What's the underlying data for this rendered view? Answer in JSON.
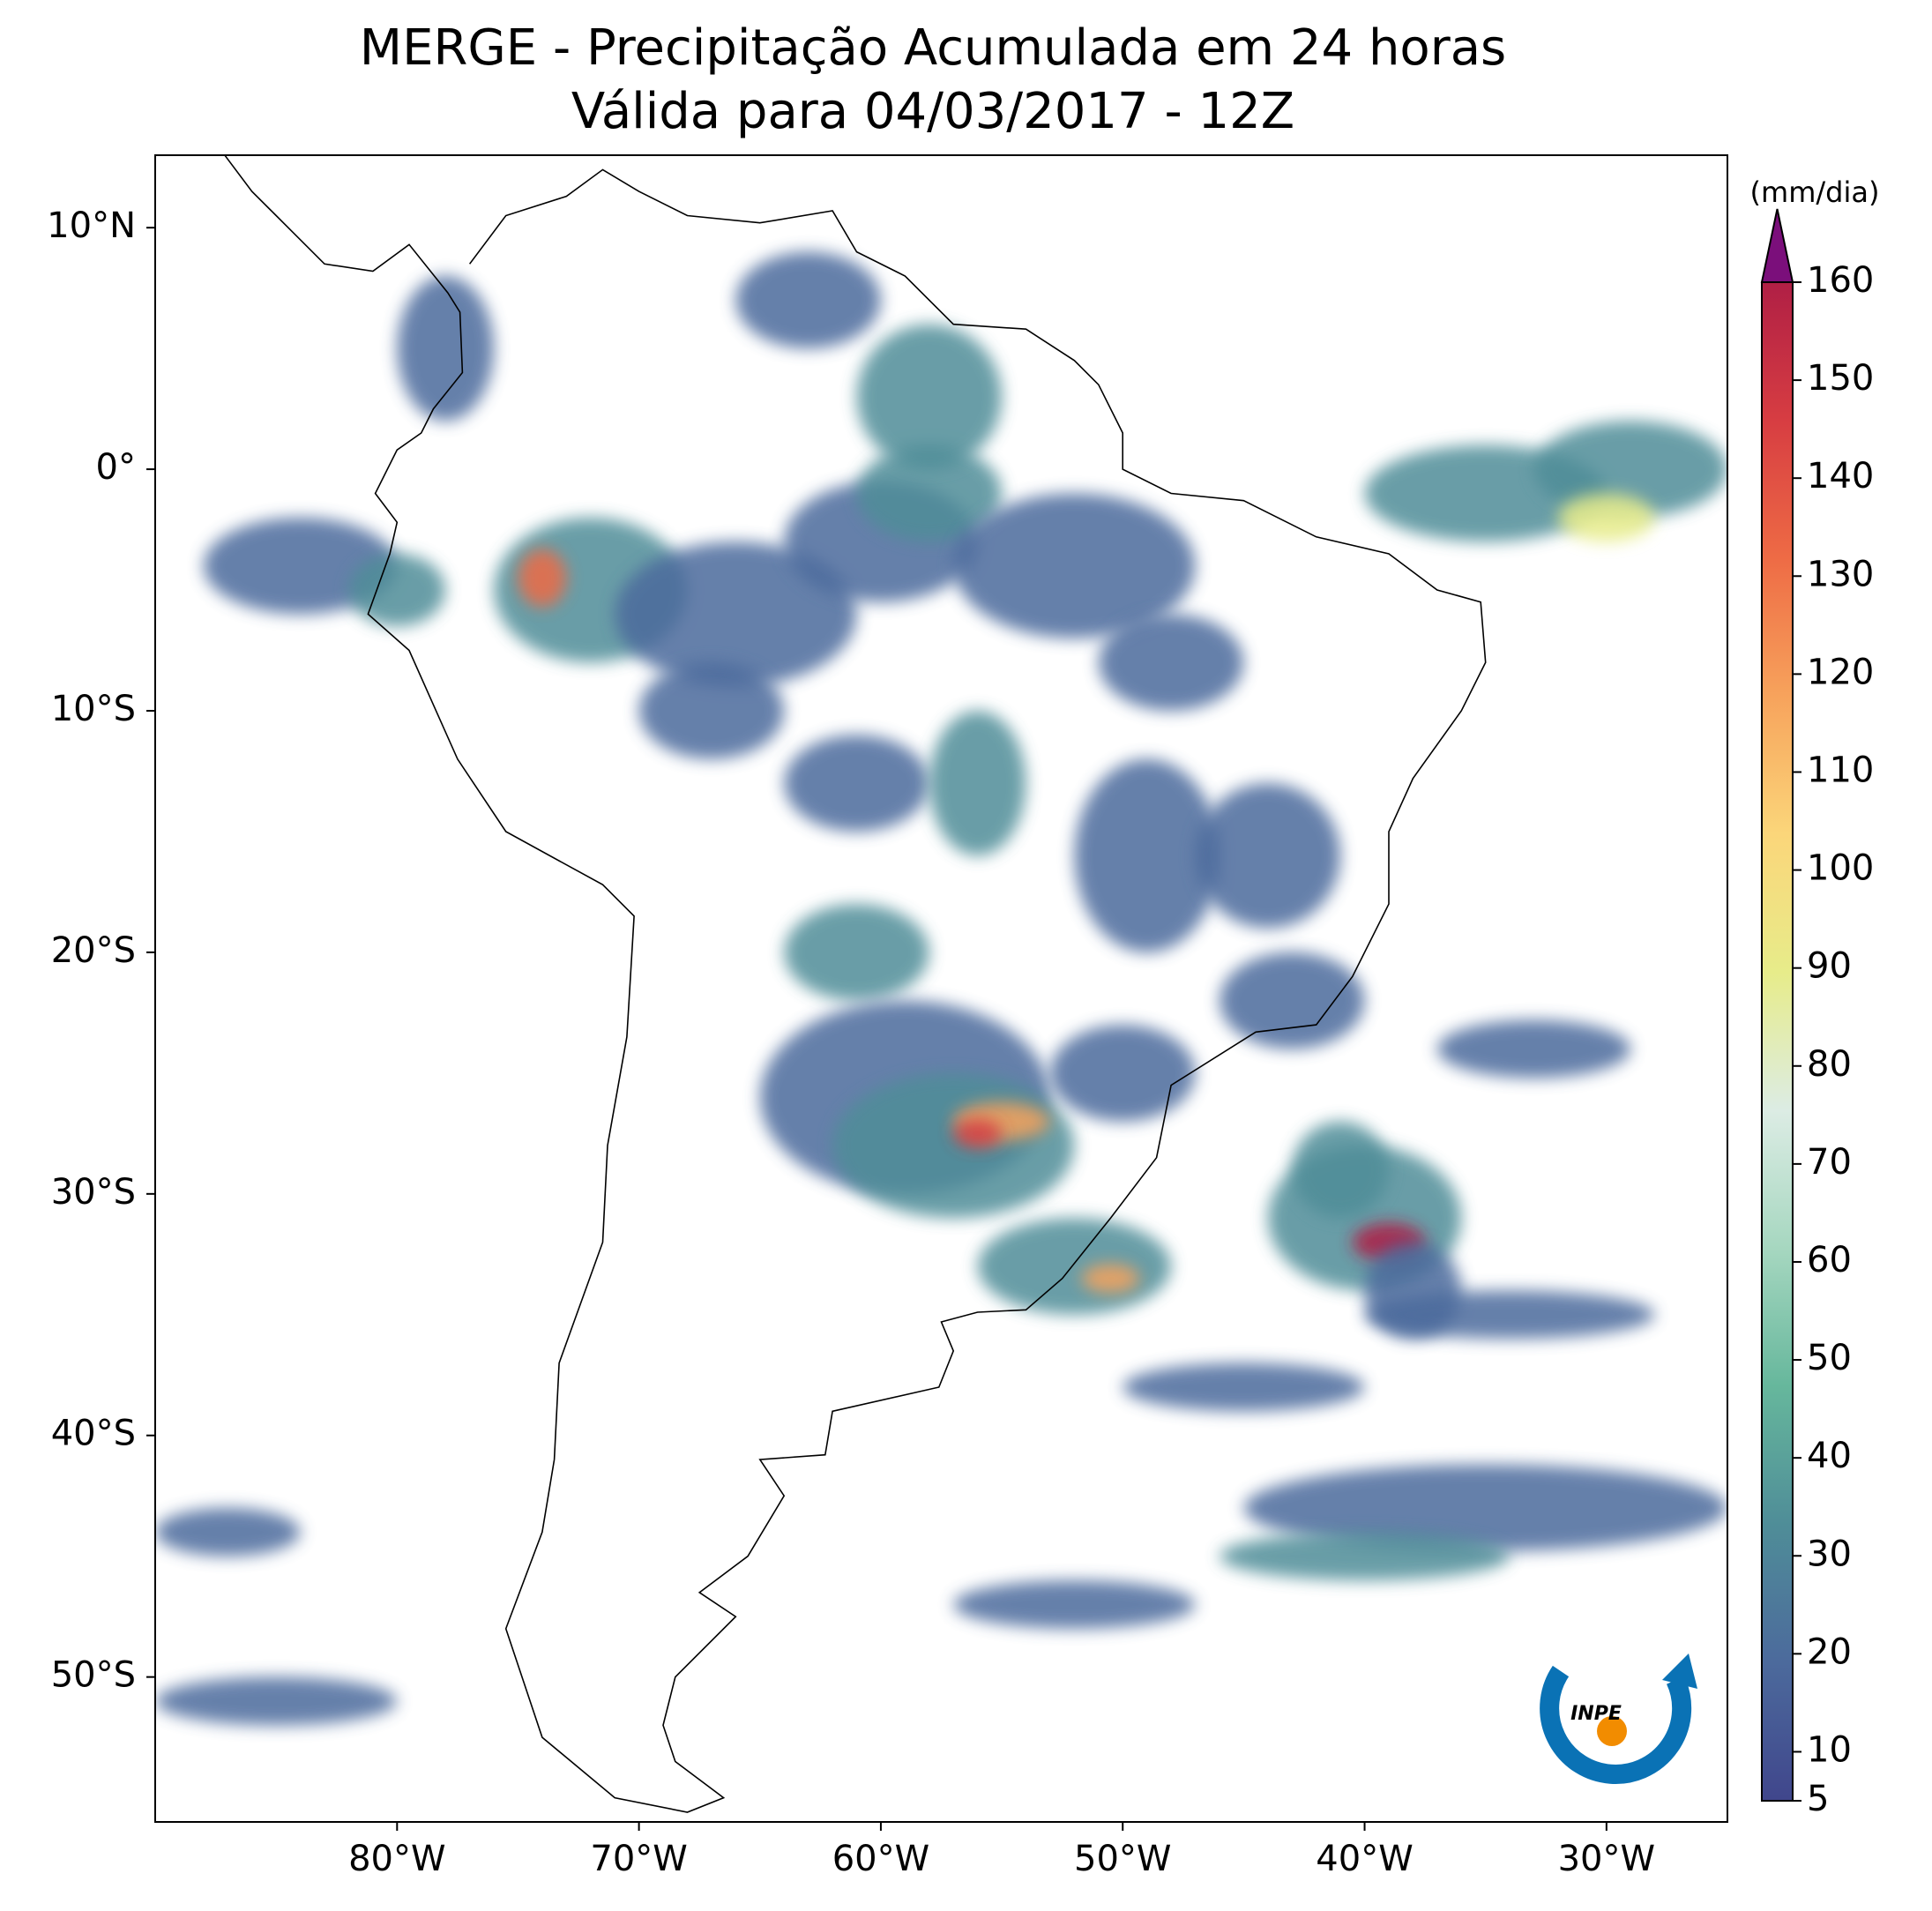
{
  "chart_data": {
    "type": "map",
    "title": "MERGE - Precipitação Acumulada em 24 horas",
    "subtitle": "Válida para 04/03/2017 - 12Z",
    "xlim": [
      -90,
      -25
    ],
    "ylim": [
      -56,
      13
    ],
    "xticks": [
      {
        "value": -80,
        "label": "80°W"
      },
      {
        "value": -70,
        "label": "70°W"
      },
      {
        "value": -60,
        "label": "60°W"
      },
      {
        "value": -50,
        "label": "50°W"
      },
      {
        "value": -40,
        "label": "40°W"
      },
      {
        "value": -30,
        "label": "30°W"
      }
    ],
    "yticks": [
      {
        "value": 10,
        "label": "10°N"
      },
      {
        "value": 0,
        "label": "0°"
      },
      {
        "value": -10,
        "label": "10°S"
      },
      {
        "value": -20,
        "label": "20°S"
      },
      {
        "value": -30,
        "label": "30°S"
      },
      {
        "value": -40,
        "label": "40°S"
      },
      {
        "value": -50,
        "label": "50°S"
      }
    ],
    "colorbar": {
      "label": "(mm/dia)",
      "clim": [
        5,
        160
      ],
      "ticks": [
        5,
        10,
        20,
        30,
        40,
        50,
        60,
        70,
        80,
        90,
        100,
        110,
        120,
        130,
        140,
        150,
        160
      ],
      "colors": [
        "#40468c",
        "#4c6a9c",
        "#4f8d98",
        "#66b79c",
        "#a6d7c0",
        "#dcece4",
        "#e7ec8a",
        "#fbd67a",
        "#f7a35c",
        "#ee6b45",
        "#d73d42",
        "#b01f45"
      ],
      "extend_color": "#7b0f7b"
    },
    "logo_text": "INPE"
  }
}
